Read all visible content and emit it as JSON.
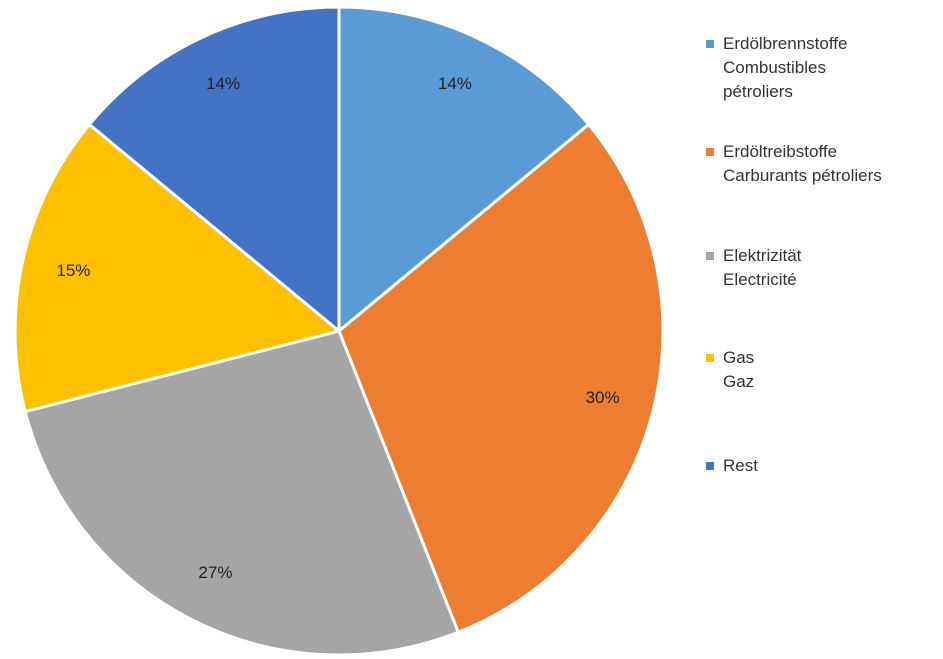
{
  "chart_data": {
    "type": "pie",
    "title": "",
    "start_angle_deg": 0,
    "direction": "clockwise",
    "legend_position": "right",
    "slices": [
      {
        "name": "Erdölbrennstoffe Combustibles pétroliers",
        "lines": [
          "Erdölbrennstoffe",
          "Combustibles",
          "pétroliers"
        ],
        "value": 14,
        "label": "14%",
        "color": "#5B9BD5"
      },
      {
        "name": "Erdöltreibstoffe Carburants pétroliers",
        "lines": [
          "Erdöltreibstoffe",
          "Carburants pétroliers"
        ],
        "value": 30,
        "label": "30%",
        "color": "#ED7D31"
      },
      {
        "name": "Elektrizität Electricité",
        "lines": [
          "Elektrizität",
          "Electricité"
        ],
        "value": 27,
        "label": "27%",
        "color": "#A5A5A5"
      },
      {
        "name": "Gas Gaz",
        "lines": [
          "Gas",
          "Gaz"
        ],
        "value": 15,
        "label": "15%",
        "color": "#FFC000"
      },
      {
        "name": "Rest",
        "lines": [
          "Rest"
        ],
        "value": 14,
        "label": "14%",
        "color": "#4472C4"
      }
    ]
  }
}
